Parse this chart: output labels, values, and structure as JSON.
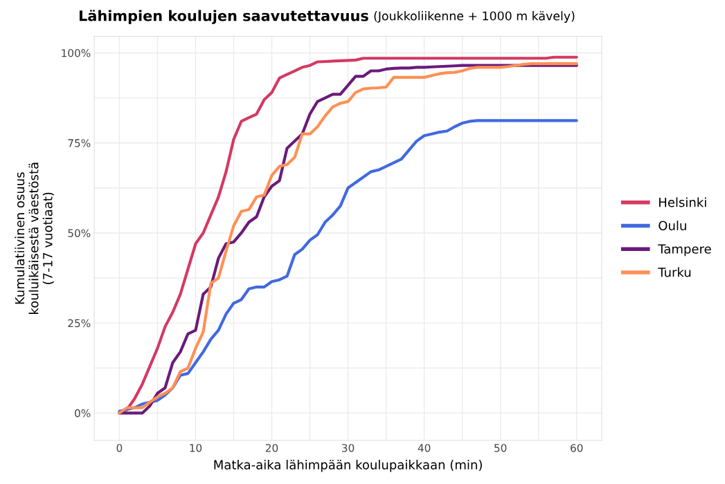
{
  "chart_data": {
    "type": "line",
    "title": "Lähimpien koulujen saavutettavuus",
    "subtitle": "(Joukkoliikenne + 1000 m kävely)",
    "xlabel": "Matka-aika lähimpään koulupaikkaan (min)",
    "ylabel": "Kumulatiivinen osuus\nkouluikäisestä väestöstä\n(7-17 vuotiaat)",
    "x": [
      0,
      1,
      2,
      3,
      4,
      5,
      6,
      7,
      8,
      9,
      10,
      11,
      12,
      13,
      14,
      15,
      16,
      17,
      18,
      19,
      20,
      21,
      22,
      23,
      24,
      25,
      26,
      27,
      28,
      29,
      30,
      31,
      32,
      33,
      34,
      35,
      36,
      37,
      38,
      39,
      40,
      41,
      42,
      43,
      44,
      45,
      46,
      47,
      48,
      49,
      50,
      51,
      52,
      53,
      54,
      55,
      56,
      57,
      58,
      59,
      60
    ],
    "series": [
      {
        "name": "Helsinki",
        "color": "#d33a63",
        "values": [
          0,
          1,
          4,
          8,
          13,
          18,
          24,
          28,
          33,
          40,
          47,
          50,
          55,
          60,
          67,
          76,
          81,
          82,
          83,
          87,
          89,
          93,
          94,
          95,
          96,
          96.5,
          97.5,
          97.6,
          97.7,
          97.8,
          97.9,
          98,
          98.5,
          98.5,
          98.5,
          98.5,
          98.5,
          98.5,
          98.5,
          98.5,
          98.5,
          98.5,
          98.5,
          98.5,
          98.5,
          98.5,
          98.5,
          98.5,
          98.5,
          98.5,
          98.5,
          98.5,
          98.5,
          98.5,
          98.5,
          98.5,
          98.5,
          98.8,
          98.8,
          98.8,
          98.8
        ]
      },
      {
        "name": "Oulu",
        "color": "#4169e1",
        "values": [
          0.5,
          1,
          1.5,
          2.5,
          3,
          3.5,
          5,
          7,
          10.5,
          11,
          14,
          17,
          20.5,
          23,
          27.5,
          30.5,
          31.5,
          34.5,
          35,
          35,
          36.5,
          37,
          38,
          44,
          45.5,
          48,
          49.5,
          53,
          55,
          57.5,
          62.5,
          64,
          65.5,
          67,
          67.5,
          68.5,
          69.5,
          70.5,
          73,
          75.5,
          77,
          77.5,
          78,
          78.3,
          79.5,
          80.5,
          81,
          81.2,
          81.2,
          81.2,
          81.2,
          81.2,
          81.2,
          81.2,
          81.2,
          81.2,
          81.2,
          81.2,
          81.2,
          81.2,
          81.2
        ]
      },
      {
        "name": "Tampere",
        "color": "#6a1b7a",
        "values": [
          0,
          0,
          0,
          0,
          2,
          5.5,
          7,
          14,
          17,
          22,
          23,
          33,
          35,
          43,
          47,
          47.5,
          50,
          53,
          54.5,
          60,
          63,
          64.5,
          73.5,
          75.5,
          77.5,
          83,
          86.5,
          87.5,
          88.5,
          88.5,
          91,
          93.5,
          93.5,
          95,
          95,
          95.5,
          95.7,
          95.8,
          95.8,
          96,
          96,
          96.1,
          96.2,
          96.3,
          96.4,
          96.5,
          96.5,
          96.5,
          96.5,
          96.5,
          96.5,
          96.5,
          96.5,
          96.5,
          96.5,
          96.5,
          96.5,
          96.5,
          96.5,
          96.5,
          96.5
        ]
      },
      {
        "name": "Turku",
        "color": "#ff9055",
        "values": [
          0,
          1.5,
          1.5,
          1.5,
          3,
          4.5,
          5.5,
          7,
          11.5,
          12.5,
          18,
          22.5,
          36,
          37.5,
          45,
          52,
          56,
          56.5,
          60,
          60.5,
          66,
          68.5,
          69,
          71,
          77.5,
          77.5,
          79.5,
          82.5,
          85,
          86,
          86.5,
          89,
          90,
          90.2,
          90.3,
          90.5,
          93.2,
          93.2,
          93.2,
          93.2,
          93.2,
          93.7,
          94.2,
          94.5,
          94.6,
          95,
          95.7,
          96,
          96,
          96,
          96,
          96.2,
          96.5,
          96.8,
          97,
          97,
          97,
          97,
          97,
          97,
          97
        ]
      }
    ],
    "xlim": [
      -3.3,
      63.3
    ],
    "ylim": [
      -7.6,
      104.6
    ],
    "xticks": [
      0,
      {
        "value": 5,
        "label": null
      },
      10,
      {
        "value": 15,
        "label": null
      },
      20,
      {
        "value": 25,
        "label": null
      },
      30,
      {
        "value": 35,
        "label": null
      },
      40,
      {
        "value": 45,
        "label": null
      },
      50,
      {
        "value": 55,
        "label": null
      },
      60
    ],
    "yticks": [
      {
        "value": 0,
        "label": "0%"
      },
      {
        "value": 12.5,
        "label": null
      },
      {
        "value": 25,
        "label": "25%"
      },
      {
        "value": 37.5,
        "label": null
      },
      {
        "value": 50,
        "label": "50%"
      },
      {
        "value": 62.5,
        "label": null
      },
      {
        "value": 75,
        "label": "75%"
      },
      {
        "value": 87.5,
        "label": null
      },
      {
        "value": 100,
        "label": "100%"
      }
    ],
    "grid": true,
    "legend": "right",
    "line_style": "solid",
    "marker": "none"
  }
}
